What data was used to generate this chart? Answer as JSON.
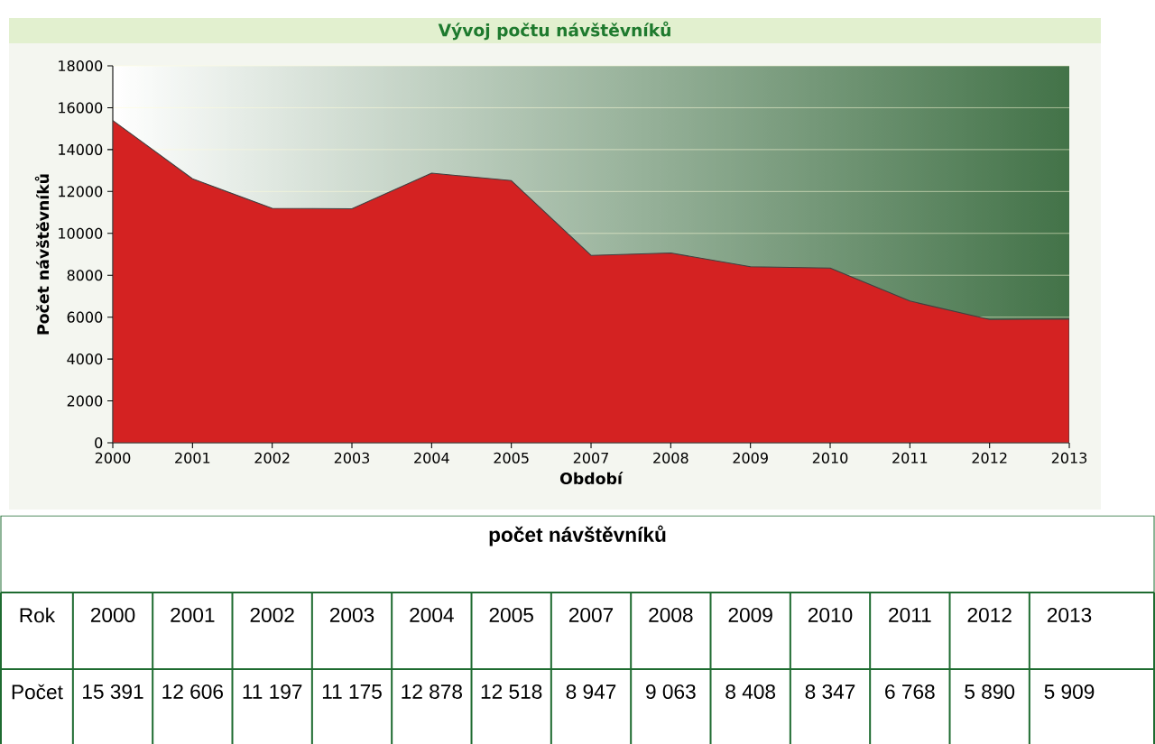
{
  "chart_data": {
    "type": "area",
    "title": "Vývoj počtu návštěvníků",
    "xlabel": "Období",
    "ylabel": "Počet návštěvníků",
    "categories": [
      "2000",
      "2001",
      "2002",
      "2003",
      "2004",
      "2005",
      "2007",
      "2008",
      "2009",
      "2010",
      "2011",
      "2012",
      "2013"
    ],
    "values": [
      15391,
      12606,
      11197,
      11175,
      12878,
      12518,
      8947,
      9063,
      8408,
      8347,
      6768,
      5890,
      5909
    ],
    "value_labels": [
      "15 391",
      "12 606",
      "11 197",
      "11 175",
      "12 878",
      "12 518",
      "8 947",
      "9 063",
      "8 408",
      "8 347",
      "6 768",
      "5 890",
      "5 909"
    ],
    "color": "#d42222",
    "ylim": [
      0,
      18000
    ],
    "yticks": [
      0,
      2000,
      4000,
      6000,
      8000,
      10000,
      12000,
      14000,
      16000,
      18000
    ],
    "grid": "y",
    "annotations": [
      "počet návštěvníků",
      "Rok",
      "Počet"
    ]
  }
}
